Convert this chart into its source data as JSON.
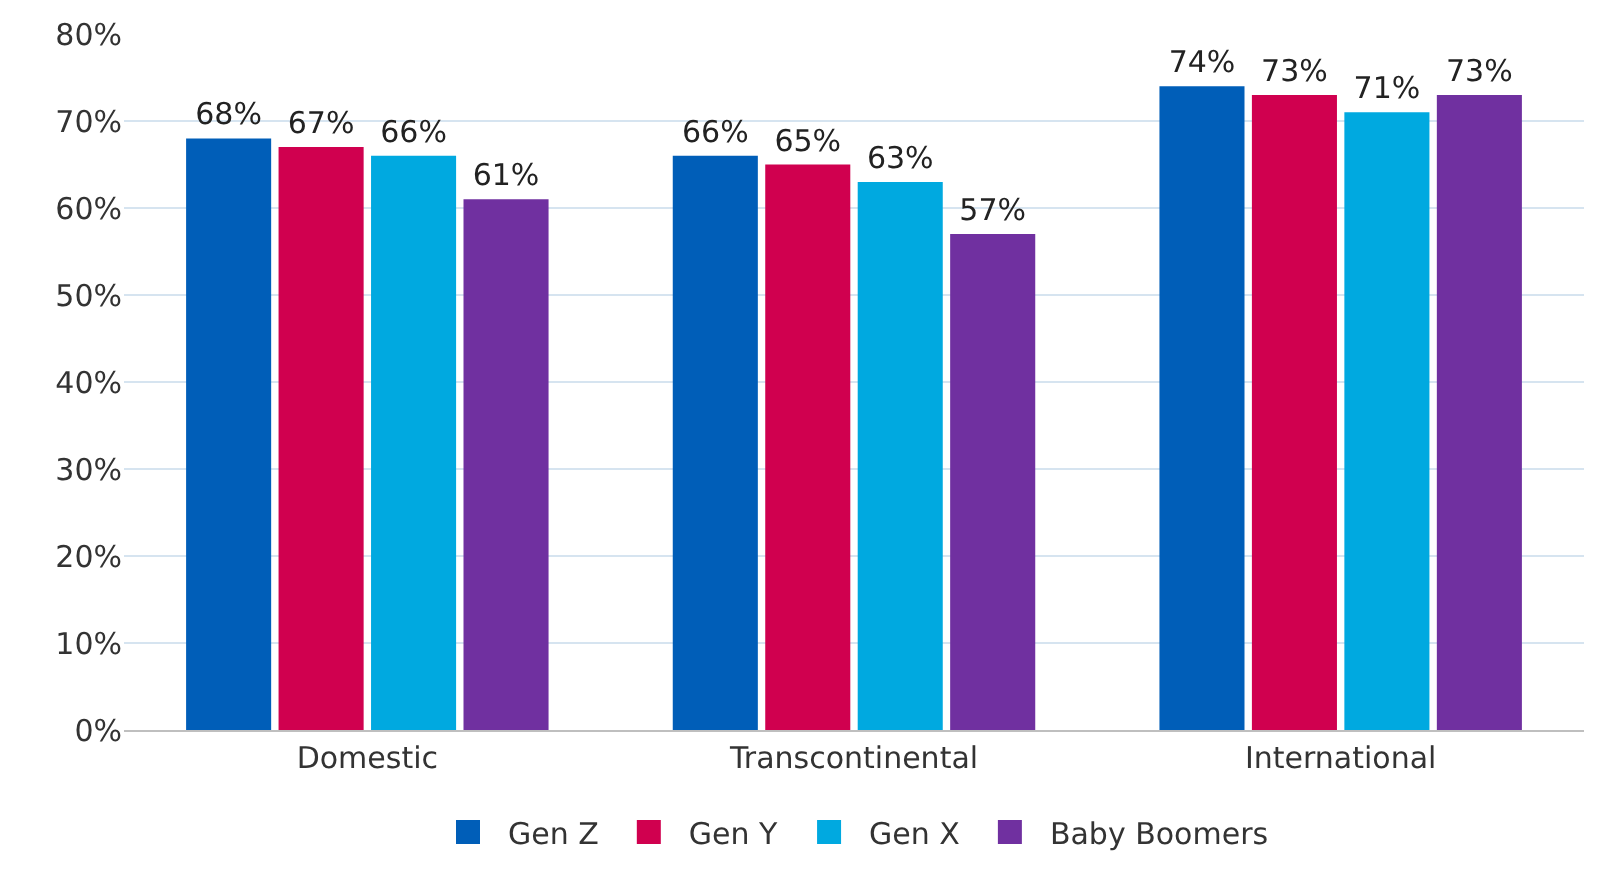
{
  "chart_data": {
    "type": "bar",
    "categories": [
      "Domestic",
      "Transcontinental",
      "International"
    ],
    "series": [
      {
        "name": "Gen Z",
        "color": "#005eb8",
        "values": [
          68,
          66,
          74
        ],
        "value_labels": [
          "68%",
          "66%",
          "74%"
        ]
      },
      {
        "name": "Gen Y",
        "color": "#d0004f",
        "values": [
          67,
          65,
          73
        ],
        "value_labels": [
          "67%",
          "65%",
          "73%"
        ]
      },
      {
        "name": "Gen X",
        "color": "#00a9e0",
        "values": [
          66,
          63,
          71
        ],
        "value_labels": [
          "66%",
          "63%",
          "71%"
        ]
      },
      {
        "name": "Baby Boomers",
        "color": "#7030a0",
        "values": [
          61,
          57,
          73
        ],
        "value_labels": [
          "61%",
          "57%",
          "73%"
        ]
      }
    ],
    "ylim": [
      0,
      80
    ],
    "yticks": [
      {
        "value": 0,
        "label": "0%"
      },
      {
        "value": 10,
        "label": "10%"
      },
      {
        "value": 20,
        "label": "20%"
      },
      {
        "value": 30,
        "label": "30%"
      },
      {
        "value": 40,
        "label": "40%"
      },
      {
        "value": 50,
        "label": "50%"
      },
      {
        "value": 60,
        "label": "60%"
      },
      {
        "value": 70,
        "label": "70%"
      },
      {
        "value": 80,
        "label": "80%"
      }
    ],
    "grid": "y",
    "legend": "bottom"
  }
}
